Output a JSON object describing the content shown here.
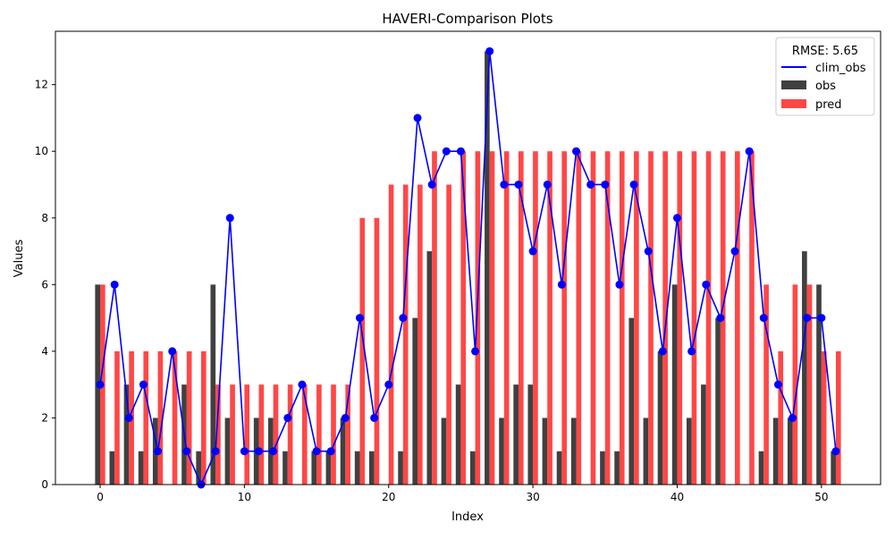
{
  "chart_data": {
    "type": "bar",
    "title": "HAVERI-Comparison Plots",
    "xlabel": "Index",
    "ylabel": "Values",
    "xlim": [
      -3.1,
      54.1
    ],
    "ylim": [
      0,
      13.6
    ],
    "xticks": [
      0,
      10,
      20,
      30,
      40,
      50
    ],
    "yticks": [
      0,
      2,
      4,
      6,
      8,
      10,
      12
    ],
    "grid": false,
    "legend": {
      "title": "RMSE: 5.65",
      "placement": "top-right",
      "entries": [
        "clim_obs",
        "obs",
        "pred"
      ]
    },
    "x": [
      0,
      1,
      2,
      3,
      4,
      5,
      6,
      7,
      8,
      9,
      10,
      11,
      12,
      13,
      14,
      15,
      16,
      17,
      18,
      19,
      20,
      21,
      22,
      23,
      24,
      25,
      26,
      27,
      28,
      29,
      30,
      31,
      32,
      33,
      34,
      35,
      36,
      37,
      38,
      39,
      40,
      41,
      42,
      43,
      44,
      45,
      46,
      47,
      48,
      49,
      50,
      51
    ],
    "series": [
      {
        "name": "obs",
        "kind": "bar",
        "color": "#404040",
        "values": [
          6,
          1,
          3,
          1,
          2,
          0,
          3,
          1,
          6,
          2,
          0,
          2,
          2,
          1,
          0,
          1,
          1,
          2,
          1,
          1,
          0,
          1,
          5,
          7,
          2,
          3,
          1,
          13,
          2,
          3,
          3,
          2,
          1,
          2,
          0,
          1,
          1,
          5,
          2,
          4,
          6,
          2,
          3,
          5,
          0,
          0,
          1,
          2,
          2,
          7,
          6,
          1
        ]
      },
      {
        "name": "pred",
        "kind": "bar",
        "color": "#ff4747",
        "values": [
          6,
          4,
          4,
          4,
          4,
          4,
          4,
          4,
          3,
          3,
          3,
          3,
          3,
          3,
          3,
          3,
          3,
          3,
          8,
          8,
          9,
          9,
          9,
          10,
          9,
          10,
          10,
          10,
          10,
          10,
          10,
          10,
          10,
          10,
          10,
          10,
          10,
          10,
          10,
          10,
          10,
          10,
          10,
          10,
          10,
          10,
          6,
          4,
          6,
          6,
          4,
          4
        ]
      },
      {
        "name": "clim_obs",
        "kind": "line",
        "color": "#0000ff",
        "values": [
          3,
          6,
          2,
          3,
          1,
          4,
          1,
          0,
          1,
          8,
          1,
          1,
          1,
          2,
          3,
          1,
          1,
          2,
          5,
          2,
          3,
          5,
          11,
          9,
          10,
          10,
          4,
          13,
          9,
          9,
          7,
          9,
          6,
          10,
          9,
          9,
          6,
          9,
          7,
          4,
          8,
          4,
          6,
          5,
          7,
          10,
          5,
          3,
          2,
          5,
          5,
          1
        ]
      }
    ]
  }
}
